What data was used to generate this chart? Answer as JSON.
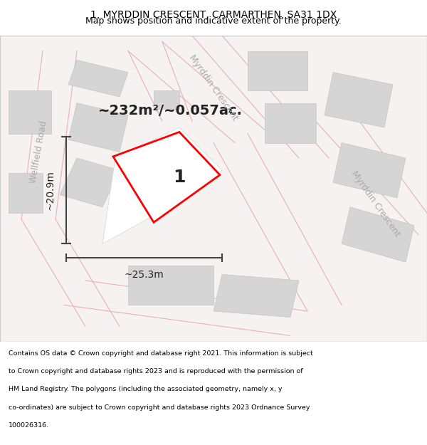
{
  "title_line1": "1, MYRDDIN CRESCENT, CARMARTHEN, SA31 1DX",
  "title_line2": "Map shows position and indicative extent of the property.",
  "area_label": "~232m²/~0.057ac.",
  "plot_number": "1",
  "dim_width": "~25.3m",
  "dim_height": "~20.9m",
  "road_label_top": "Myrddin Crescent",
  "road_label_bottom": "Myrddin Crescent",
  "road_label_left": "Wellfield Road",
  "footer_text": "Contains OS data © Crown copyright and database right 2021. This information is subject to Crown copyright and database rights 2023 and is reproduced with the permission of HM Land Registry. The polygons (including the associated geometry, namely x, y co-ordinates) are subject to Crown copyright and database rights 2023 Ordnance Survey 100026316.",
  "bg_color": "#f5f0f0",
  "map_bg": "#f5f0f0",
  "building_color": "#d8d8d8",
  "building_edge": "#cccccc",
  "road_line_color": "#e8b0b0",
  "highlight_color": "#ff0000",
  "highlight_fill": "#ffffff",
  "dim_line_color": "#444444",
  "text_color": "#333333",
  "road_text_color": "#aaaaaa"
}
